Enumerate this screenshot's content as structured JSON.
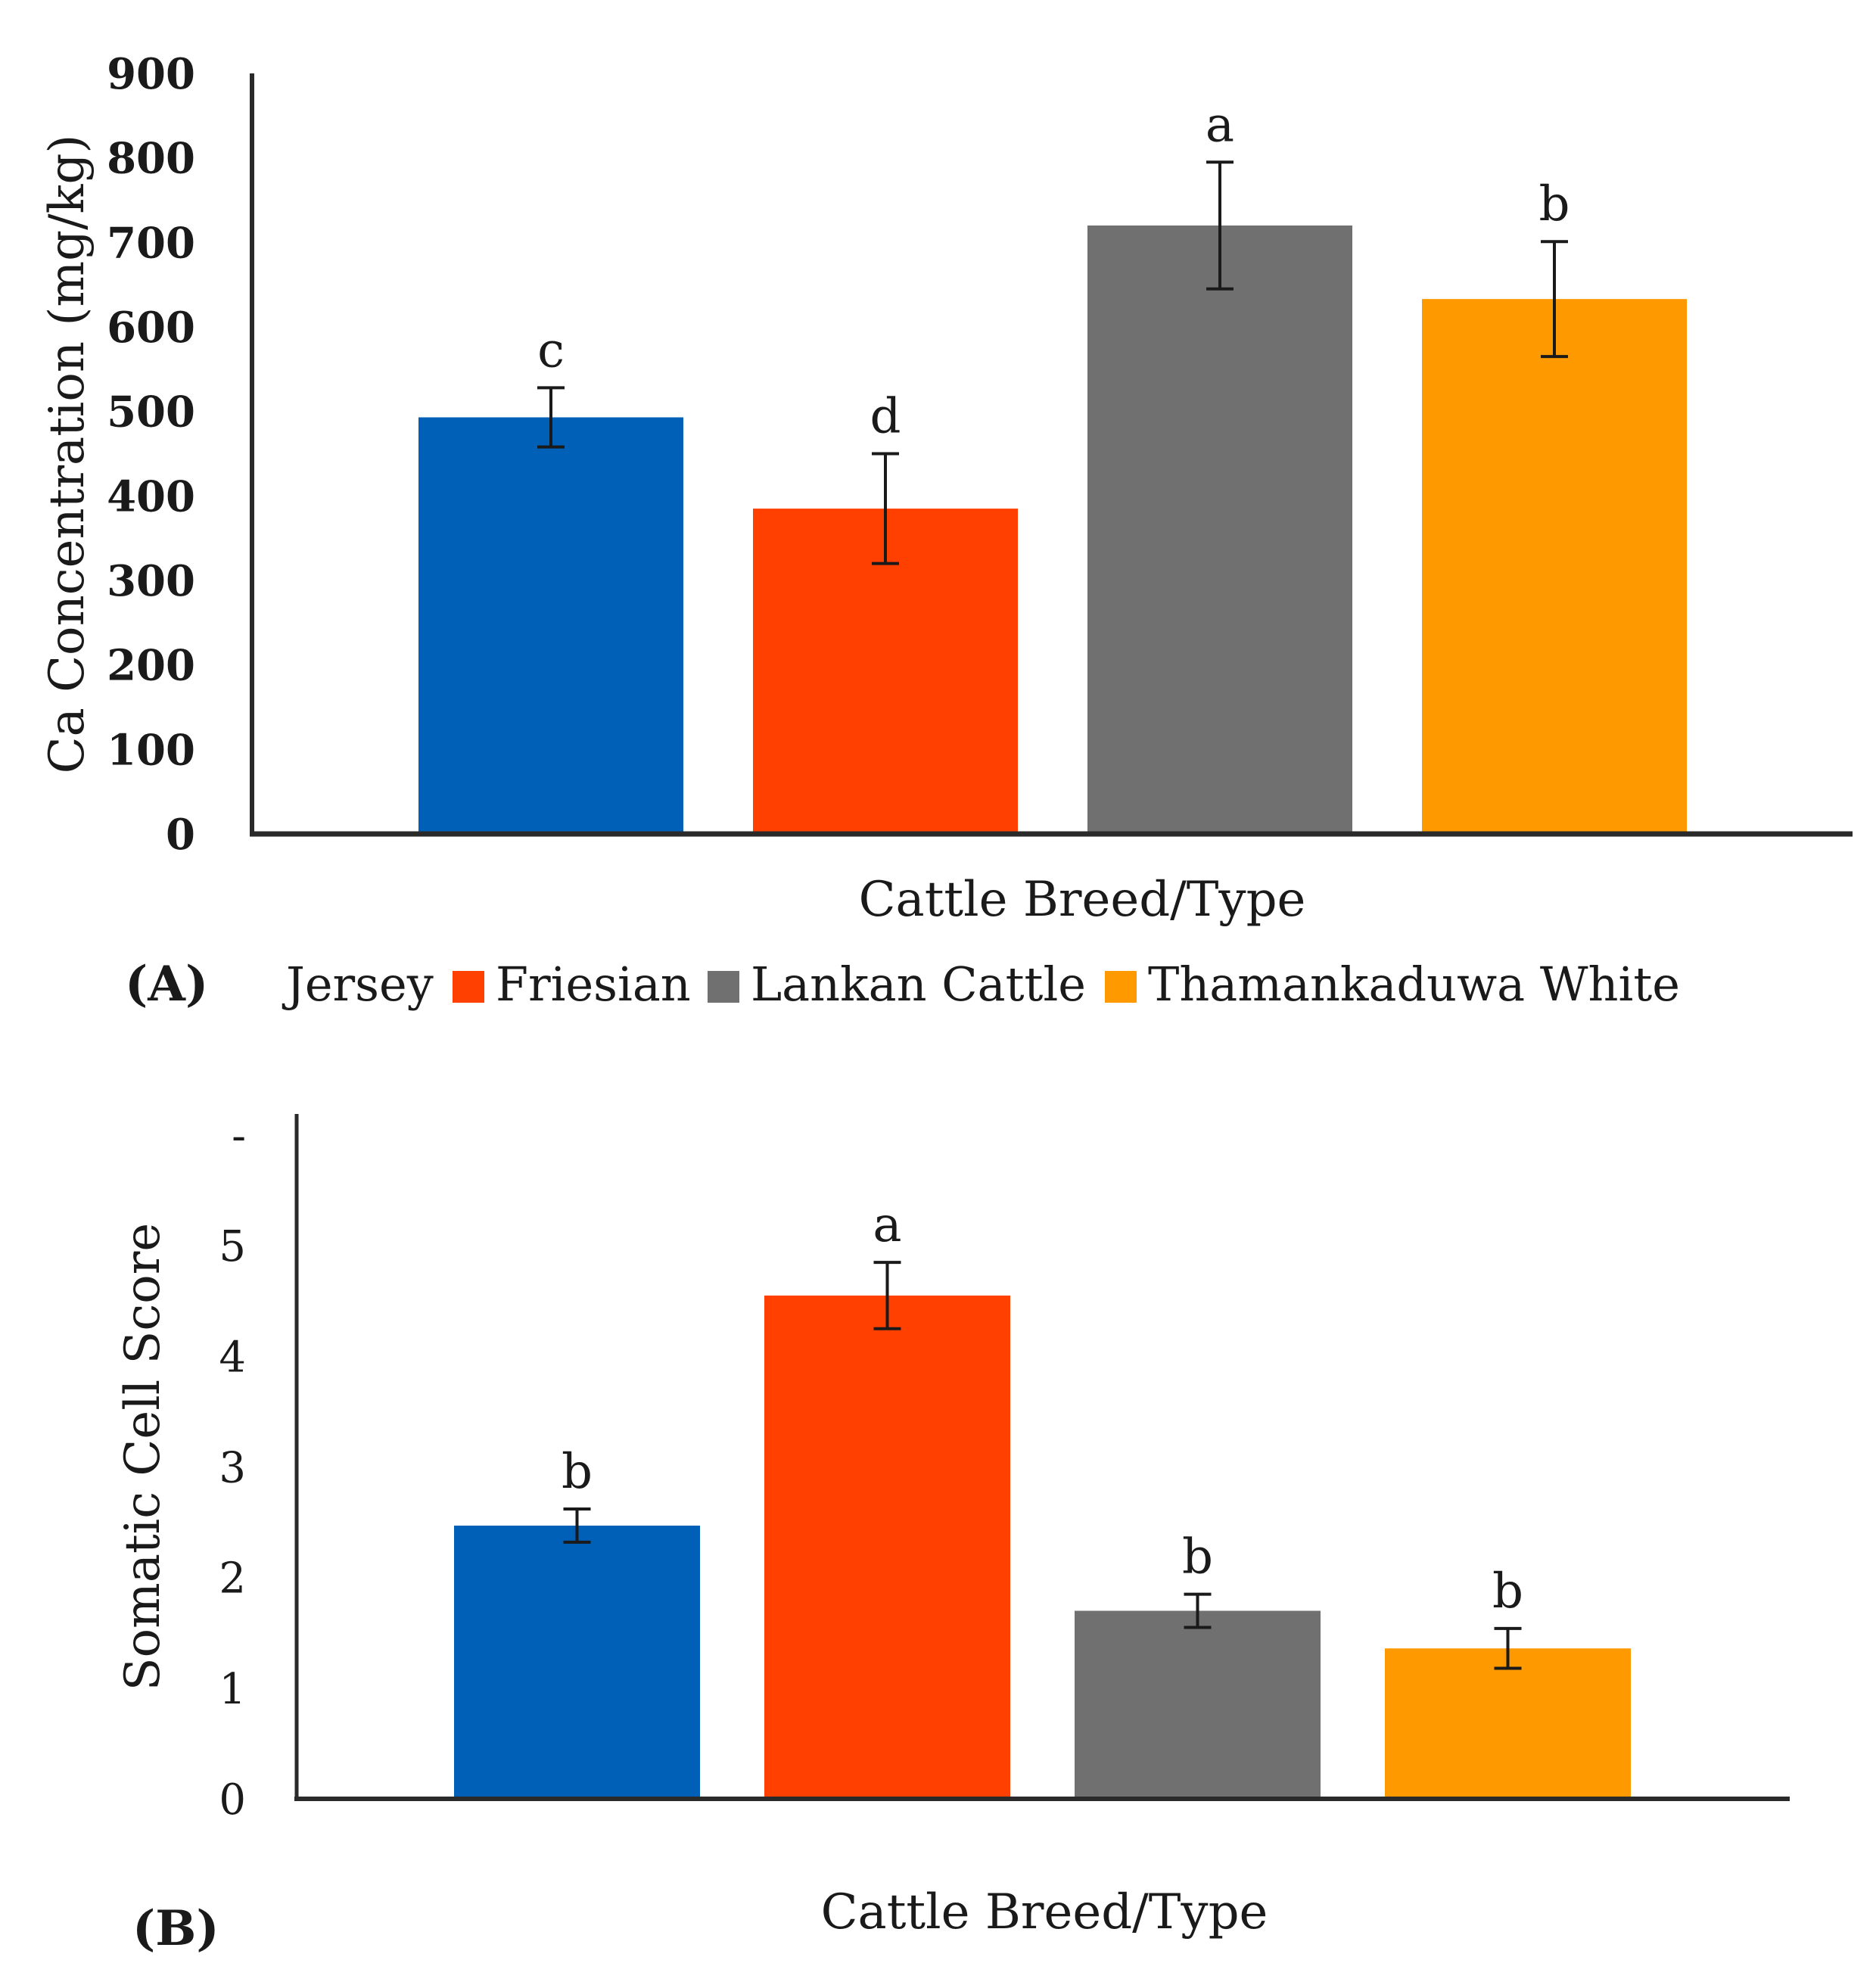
{
  "chart_data": [
    {
      "type": "bar",
      "panel": "(A)",
      "title": "",
      "xlabel": "Cattle Breed/Type",
      "ylabel": "Ca  Concentration (mg/kg)",
      "ylim": [
        0,
        900
      ],
      "yticks": [
        0,
        100,
        200,
        300,
        400,
        500,
        600,
        700,
        800,
        900
      ],
      "categories": [
        "Jersey",
        "Friesian",
        "Lankan Cattle",
        "Thamankaduwa White"
      ],
      "values": [
        493,
        385,
        720,
        633
      ],
      "errors": [
        35,
        65,
        75,
        68
      ],
      "significance": [
        "c",
        "d",
        "a",
        "b"
      ],
      "colors": [
        "#0060b8",
        "#ff4000",
        "#707070",
        "#ff9900"
      ],
      "legend": {
        "position": "bottom",
        "entries": [
          "Jersey",
          "Friesian",
          "Lankan Cattle",
          "Thamankaduwa White"
        ]
      }
    },
    {
      "type": "bar",
      "panel": "(B)",
      "title": "",
      "xlabel": "Cattle Breed/Type",
      "ylabel": "Somatic Cell Score",
      "ylim": [
        0,
        6
      ],
      "yticks": [
        "0",
        "1",
        "2",
        "3",
        "4",
        "5",
        "-"
      ],
      "categories": [
        "Jersey",
        "Friesian",
        "Lankan Cattle",
        "Thamankaduwa White"
      ],
      "values": [
        2.47,
        4.55,
        1.7,
        1.36
      ],
      "errors": [
        0.15,
        0.3,
        0.15,
        0.18
      ],
      "significance": [
        "b",
        "a",
        "b",
        "b"
      ],
      "colors": [
        "#0060b8",
        "#ff4000",
        "#707070",
        "#ff9900"
      ]
    }
  ]
}
